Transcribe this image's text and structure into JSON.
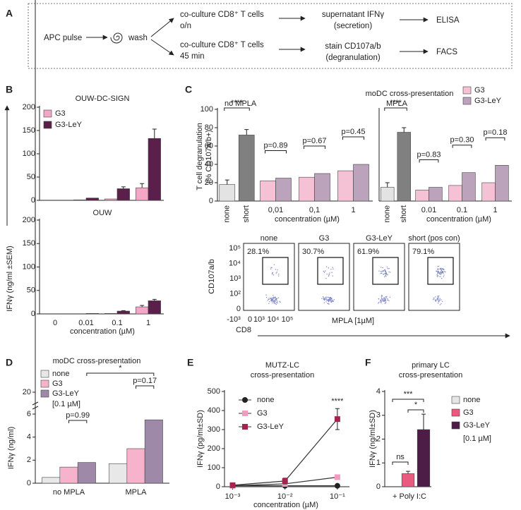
{
  "panel_labels": [
    "A",
    "B",
    "C",
    "D",
    "E",
    "F"
  ],
  "diagram": {
    "start": "APC pulse",
    "wash": "wash",
    "route_1": {
      "culture": [
        "co-culture CD8⁺ T cells",
        "o/n"
      ],
      "readout": [
        "supernatant IFNγ",
        "(secretion)"
      ],
      "assay": "ELISA"
    },
    "route_2": {
      "culture": [
        "co-culture CD8⁺ T cells",
        "45 min"
      ],
      "readout": [
        "stain CD107a/b",
        "(degranulation)"
      ],
      "assay": "FACS"
    }
  },
  "panel_c": {
    "title": "moDC cross-presentation",
    "flow": {
      "plots": [
        {
          "title": "none",
          "percent": "28.1%"
        },
        {
          "title": "G3",
          "percent": "30.7%"
        },
        {
          "title": "G3-LeY",
          "percent": "61.9%"
        },
        {
          "title": "short (pos con)",
          "percent": "79.1%"
        }
      ],
      "y_label": "CD107a/b",
      "x_label": "CD8",
      "condition": "MPLA  [1µM]",
      "yticks": [
        "10⁵",
        "10⁴",
        "10³",
        "10²",
        "0"
      ],
      "xticks": [
        "-10³",
        "0",
        "10³",
        "10⁴",
        "10⁵"
      ]
    }
  },
  "chart_data": [
    {
      "type": "bar",
      "title": "OUW-DC-SIGN",
      "y_label": "IFNγ (ng/ml ±SEM)",
      "ylim": [
        0,
        200
      ],
      "yticks": [
        0,
        50,
        100,
        150,
        200
      ],
      "series": [
        {
          "name": "G3",
          "color": "#f4a6c6",
          "values": [
            0,
            1,
            3,
            27
          ],
          "errors": [
            null,
            null,
            null,
            9
          ]
        },
        {
          "name": "G3-LeY",
          "color": "#5b1f4c",
          "values": [
            0,
            5,
            25,
            133
          ],
          "errors": [
            null,
            null,
            4,
            20
          ]
        }
      ]
    },
    {
      "type": "bar",
      "title": "OUW",
      "x_label": "concentration (µM)",
      "categories": [
        "0",
        "0.01",
        "0.1",
        "1"
      ],
      "ylim": [
        0,
        200
      ],
      "yticks": [
        0,
        50,
        100,
        150,
        200
      ],
      "series": [
        {
          "color": "#f4a6c6",
          "values": [
            0,
            0,
            1,
            15
          ],
          "errors": [
            null,
            null,
            null,
            3
          ]
        },
        {
          "color": "#5b1f4c",
          "values": [
            0,
            1,
            6,
            28
          ],
          "errors": [
            null,
            null,
            1,
            3
          ]
        }
      ]
    },
    {
      "type": "bar",
      "title": "no MPLA",
      "y_label": [
        "T cell degranulation",
        "(% CD107a/b+)"
      ],
      "x_label": "concentration (µM)",
      "categories": [
        "none",
        "short",
        "0,01",
        "0,1",
        "1"
      ],
      "control_values": [
        18,
        72,
        null,
        null,
        null
      ],
      "control_errors": [
        5,
        6,
        null,
        null,
        null
      ],
      "control_colors": [
        "#e3e3e3",
        "#808080"
      ],
      "ylim": [
        0,
        100
      ],
      "yticks": [
        0,
        20,
        40,
        60,
        80,
        100
      ],
      "series": [
        {
          "name": "G3",
          "color": "#f5c2d5",
          "values": [
            null,
            null,
            22,
            26,
            33
          ]
        },
        {
          "name": "G3-LeY",
          "color": "#bba3bb",
          "values": [
            null,
            null,
            25,
            30,
            40
          ]
        }
      ],
      "significance": [
        "****",
        null,
        "p=0.89",
        "p=0.67",
        "p=0.45"
      ]
    },
    {
      "type": "bar",
      "title": "MPLA",
      "x_label": "concentration (µM)",
      "categories": [
        "none",
        "short",
        "0.01",
        "0.1",
        "1"
      ],
      "control_values": [
        15,
        75,
        null,
        null,
        null
      ],
      "control_errors": [
        5,
        5,
        null,
        null,
        null
      ],
      "control_colors": [
        "#e3e3e3",
        "#808080"
      ],
      "ylim": [
        0,
        100
      ],
      "series": [
        {
          "color": "#f5c2d5",
          "values": [
            null,
            null,
            12,
            17,
            20
          ]
        },
        {
          "color": "#bba3bb",
          "values": [
            null,
            null,
            15,
            31,
            39
          ]
        }
      ],
      "significance": [
        "****",
        null,
        "p=0.83",
        "p=0.30",
        "p=0.18"
      ]
    },
    {
      "type": "bar",
      "title": "moDC cross-presentation",
      "y_label": "IFNγ (ng/ml)",
      "categories": [
        "no MPLA",
        "MPLA"
      ],
      "ylim": [
        0,
        6
      ],
      "yticks": [
        0,
        2,
        4,
        6
      ],
      "break_ticks": [
        20
      ],
      "series": [
        {
          "name": "none",
          "color": "#e8e8e8",
          "values": [
            0.5,
            1.7
          ]
        },
        {
          "name": "G3",
          "color": "#f7b3cc",
          "values": [
            1.4,
            3.0
          ]
        },
        {
          "name": "G3-LeY",
          "color": "#9e8aa8",
          "values": [
            1.8,
            5.5
          ]
        }
      ],
      "legend_note": "[0.1 µM]",
      "significance": [
        "p=0.99",
        "p=0.17"
      ],
      "comparison": "*"
    },
    {
      "type": "line",
      "title": [
        "MUTZ-LC",
        "cross-presentation"
      ],
      "y_label": "IFNγ (pg/ml±SD)",
      "x_label": "concentration (µM)",
      "xlog": true,
      "x": [
        0.001,
        0.01,
        0.1
      ],
      "xlim": [
        0.0007,
        0.17
      ],
      "xticks": [
        {
          "value": 0.001,
          "label": "10⁻³"
        },
        {
          "value": 0.01,
          "label": "10⁻²"
        },
        {
          "value": 0.1,
          "label": "10⁻¹"
        }
      ],
      "ylim": [
        0,
        500
      ],
      "yticks": [
        0,
        100,
        200,
        300,
        400,
        500
      ],
      "series": [
        {
          "name": "none",
          "color": "#222222",
          "marker": "circle",
          "values": [
            5,
            5,
            5
          ]
        },
        {
          "name": "G3",
          "color": "#f49ac1",
          "marker": "square",
          "values": [
            5,
            15,
            50
          ],
          "errors": [
            null,
            5,
            5
          ]
        },
        {
          "name": "G3-LeY",
          "color": "#a3244f",
          "marker": "square",
          "values": [
            8,
            30,
            355
          ],
          "errors": [
            null,
            15,
            55
          ]
        }
      ],
      "annotation": "****"
    },
    {
      "type": "bar",
      "title": [
        "primary LC",
        "cross-presentation"
      ],
      "y_label": "IFNγ (ng/ml±SD)",
      "x_label": "+ Poly I:C",
      "categories": [
        "none",
        "G3",
        "G3-LeY"
      ],
      "values": [
        0,
        0.55,
        2.4
      ],
      "errors": [
        null,
        0.1,
        0.65
      ],
      "colors": [
        "#e6e6e6",
        "#ea5a80",
        "#4d1d48"
      ],
      "ylim": [
        0,
        4
      ],
      "yticks": [
        0,
        1,
        2,
        3,
        4
      ],
      "legend_note": "[0.1 µM]",
      "significance": [
        "ns",
        "*",
        "***"
      ]
    }
  ]
}
